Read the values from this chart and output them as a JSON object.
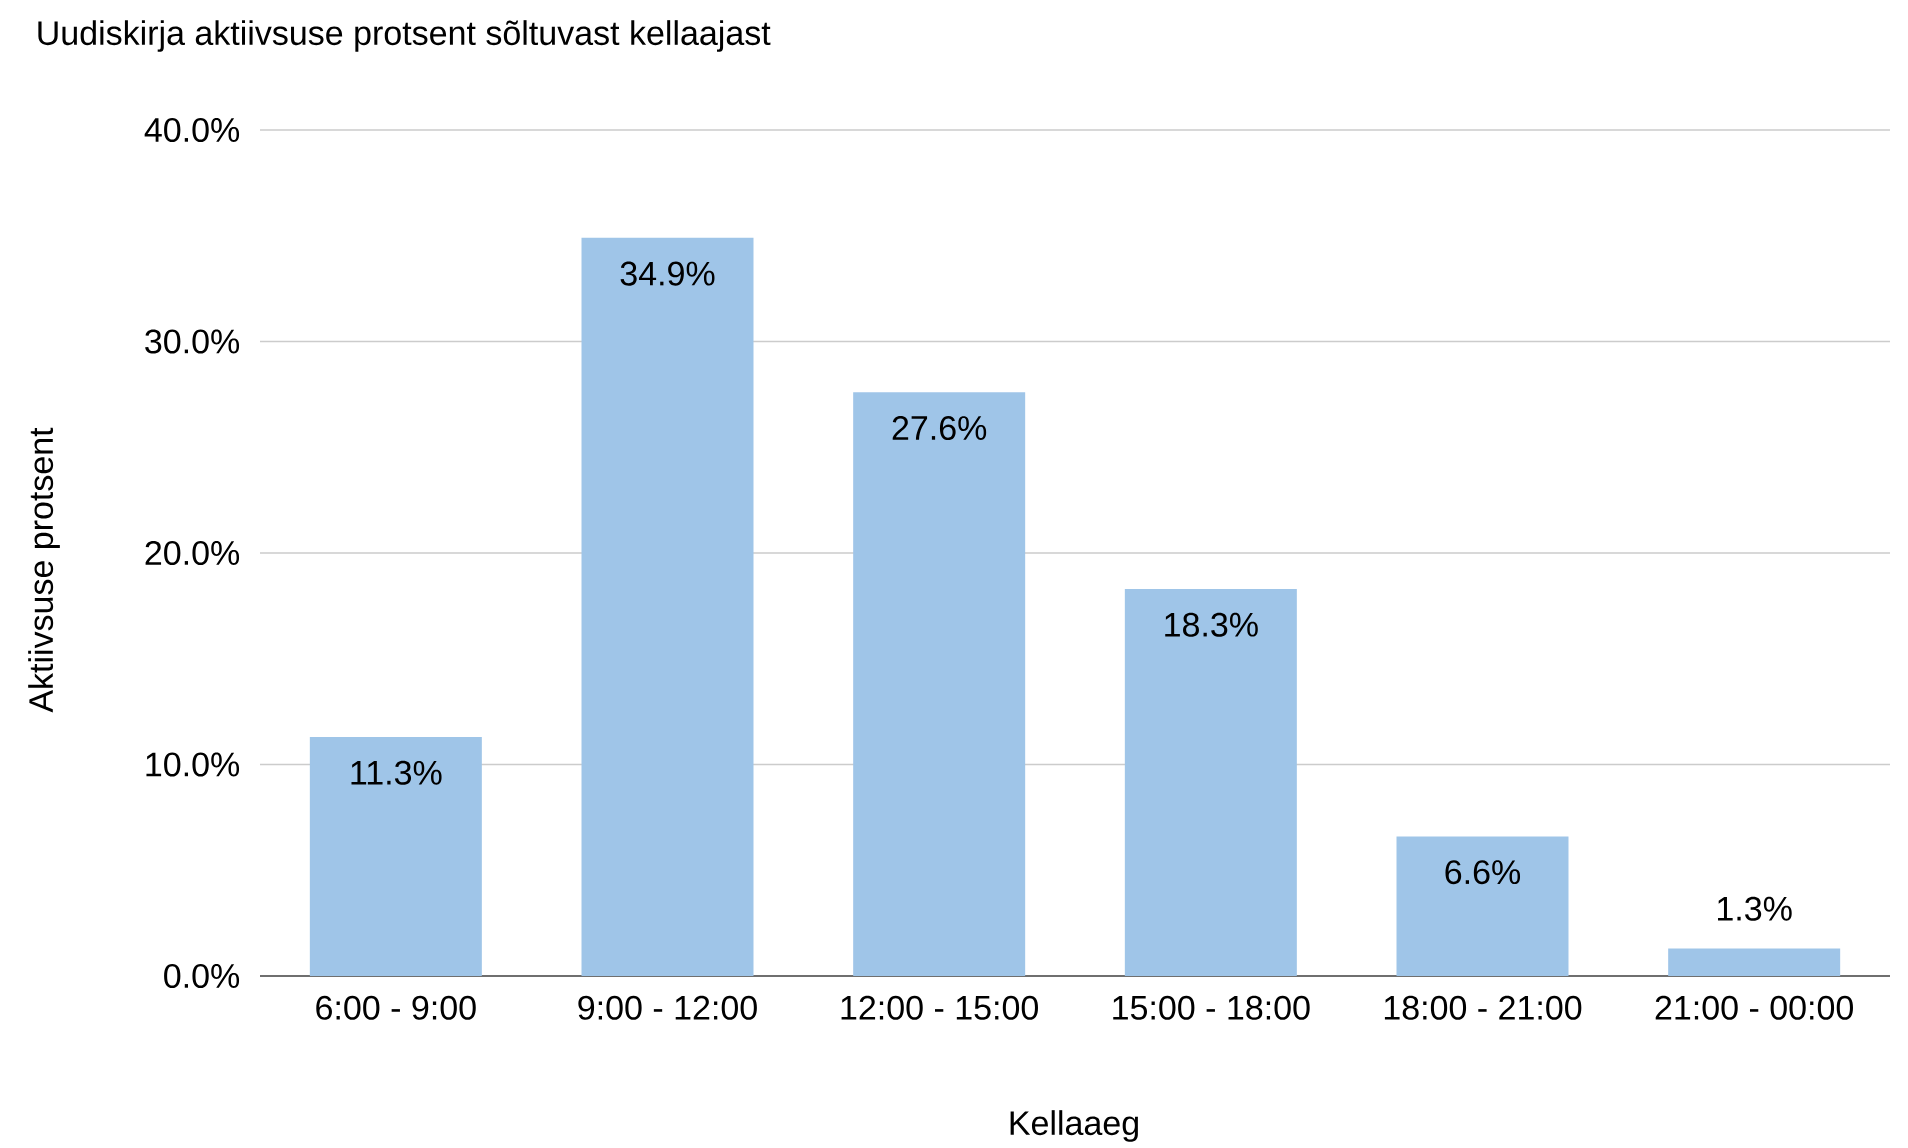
{
  "chart_data": {
    "type": "bar",
    "title": "Uudiskirja aktiivsuse protsent sõltuvast kellaajast",
    "xlabel": "Kellaaeg",
    "ylabel": "Aktiivsuse protsent",
    "categories": [
      "6:00 - 9:00",
      "9:00 - 12:00",
      "12:00 - 15:00",
      "15:00 - 18:00",
      "18:00 - 21:00",
      "21:00 - 00:00"
    ],
    "values": [
      11.3,
      34.9,
      27.6,
      18.3,
      6.6,
      1.3
    ],
    "value_labels": [
      "11.3%",
      "34.9%",
      "27.6%",
      "18.3%",
      "6.6%",
      "1.3%"
    ],
    "color": "#9fc5e8",
    "ylim": [
      0,
      40
    ],
    "yticks": [
      {
        "value": 0,
        "label": "0.0%"
      },
      {
        "value": 10,
        "label": "10.0%"
      },
      {
        "value": 20,
        "label": "20.0%"
      },
      {
        "value": 30,
        "label": "30.0%"
      },
      {
        "value": 40,
        "label": "40.0%"
      }
    ],
    "grid": "y"
  }
}
